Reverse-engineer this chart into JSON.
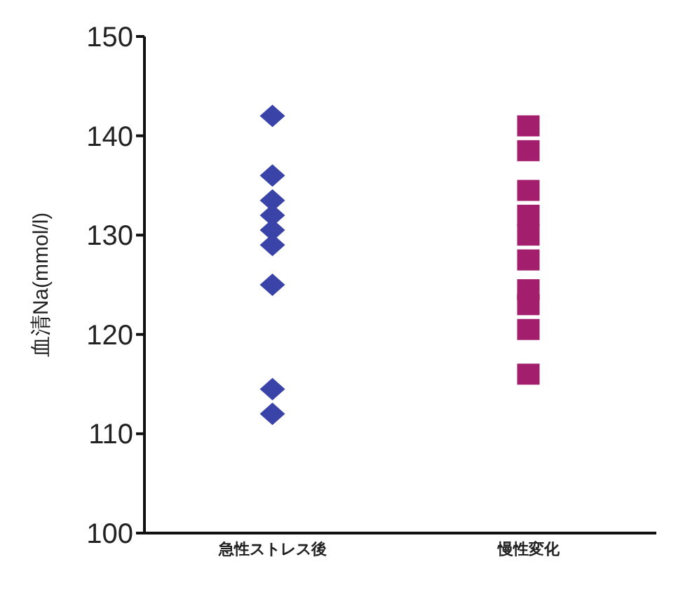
{
  "chart_data": {
    "type": "scatter",
    "ylabel": "血清Na(mmol/l)",
    "categories": [
      "急性ストレス後",
      "慢性変化"
    ],
    "ylim": [
      100,
      150
    ],
    "yticks": [
      100,
      110,
      120,
      130,
      140,
      150
    ],
    "grid": false,
    "series": [
      {
        "color": "#3a44a8",
        "marker": "diamond",
        "x": [
          "急性ストレス後",
          "急性ストレス後",
          "急性ストレス後",
          "急性ストレス後",
          "急性ストレス後",
          "急性ストレス後",
          "急性ストレス後",
          "急性ストレス後",
          "急性ストレス後"
        ],
        "values": [
          142,
          136,
          133.5,
          132,
          130.5,
          129,
          125,
          114.5,
          112
        ]
      },
      {
        "color": "#a31f6e",
        "marker": "square",
        "x": [
          "慢性変化",
          "慢性変化",
          "慢性変化",
          "慢性変化",
          "慢性変化",
          "慢性変化",
          "慢性変化",
          "慢性変化",
          "慢性変化",
          "慢性変化"
        ],
        "values": [
          141,
          138.5,
          134.5,
          132,
          130,
          127.5,
          124.5,
          123,
          120.5,
          116
        ]
      }
    ]
  }
}
